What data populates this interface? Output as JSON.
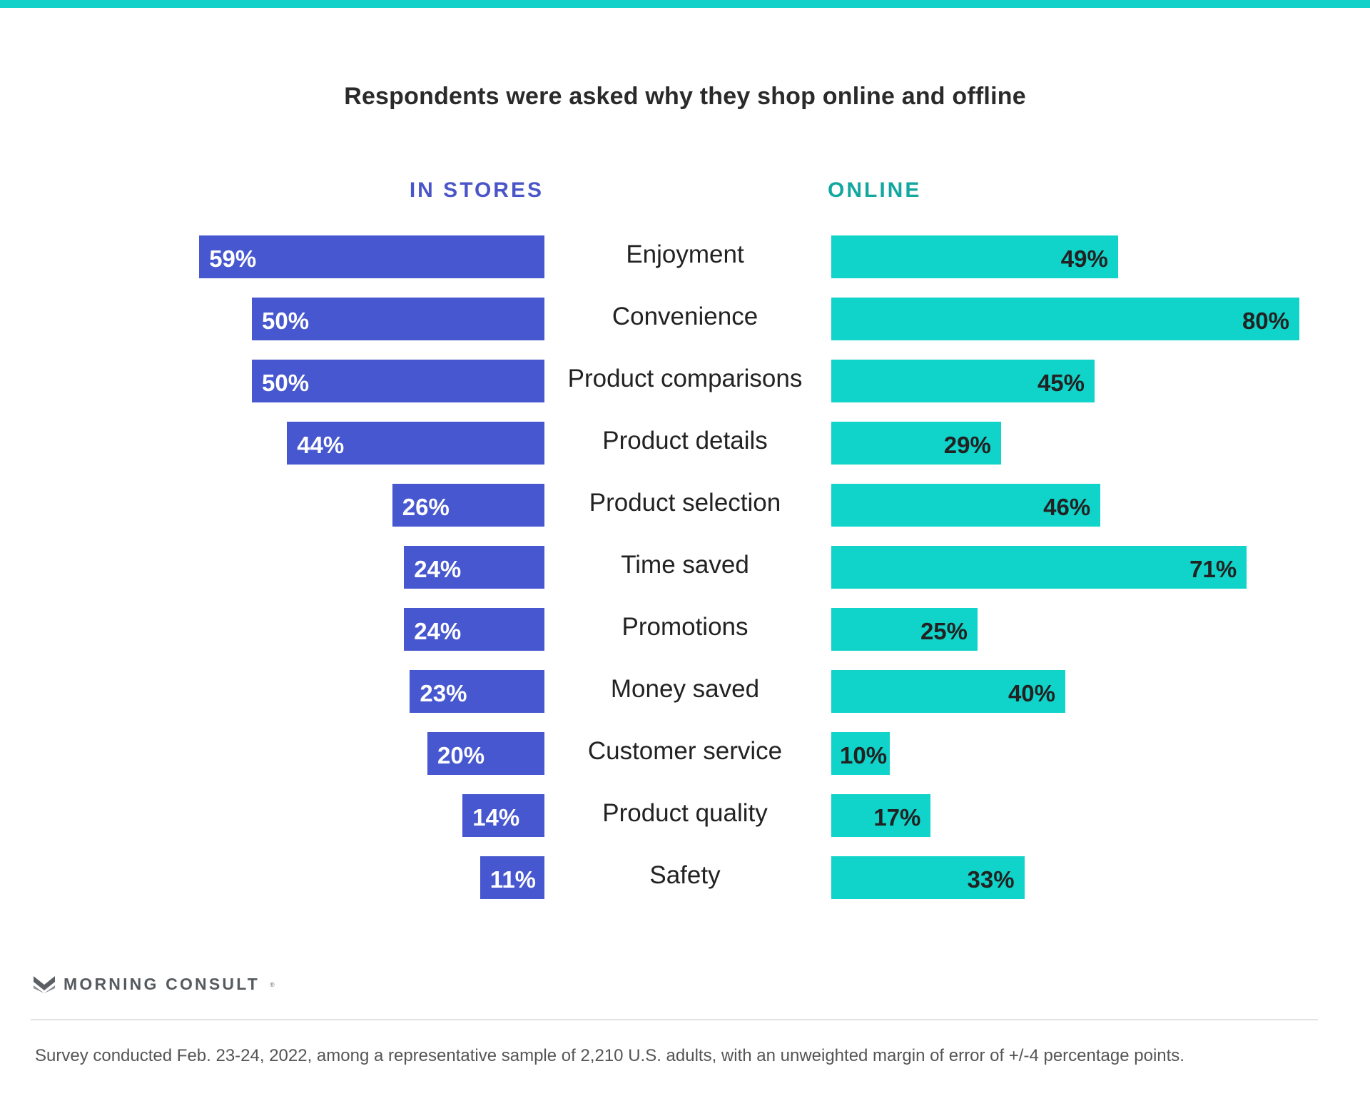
{
  "colors": {
    "accent_top": "#12d1c8",
    "in_stores": "#4657cf",
    "online": "#10d3c9",
    "in_stores_header": "#4a55c8",
    "online_header": "#13a7a0",
    "in_stores_label": "#ffffff",
    "online_label": "#222222"
  },
  "footer": {
    "brand": "MORNING CONSULT",
    "brand_icon": "morning-consult-logo-icon",
    "note": "Survey conducted Feb. 23-24, 2022, among a representative sample of 2,210 U.S. adults, with an unweighted margin of error of +/-4 percentage points."
  },
  "chart_data": {
    "type": "bar",
    "orientation": "horizontal-diverging",
    "title": "Respondents were asked why they shop online and offline",
    "categories": [
      "Enjoyment",
      "Convenience",
      "Product comparisons",
      "Product details",
      "Product selection",
      "Time saved",
      "Promotions",
      "Money saved",
      "Customer service",
      "Product quality",
      "Safety"
    ],
    "series": [
      {
        "name": "IN STORES",
        "values": [
          59,
          50,
          50,
          44,
          26,
          24,
          24,
          23,
          20,
          14,
          11
        ],
        "labels": [
          "59%",
          "50%",
          "50%",
          "44%",
          "26%",
          "24%",
          "24%",
          "23%",
          "20%",
          "14%",
          "11%"
        ]
      },
      {
        "name": "ONLINE",
        "values": [
          49,
          80,
          45,
          29,
          46,
          71,
          25,
          40,
          10,
          17,
          33
        ],
        "labels": [
          "49%",
          "80%",
          "45%",
          "29%",
          "46%",
          "71%",
          "25%",
          "40%",
          "10%",
          "17%",
          "33%"
        ]
      }
    ],
    "unit": "%",
    "grid": false,
    "legend": "column headers above bars"
  }
}
